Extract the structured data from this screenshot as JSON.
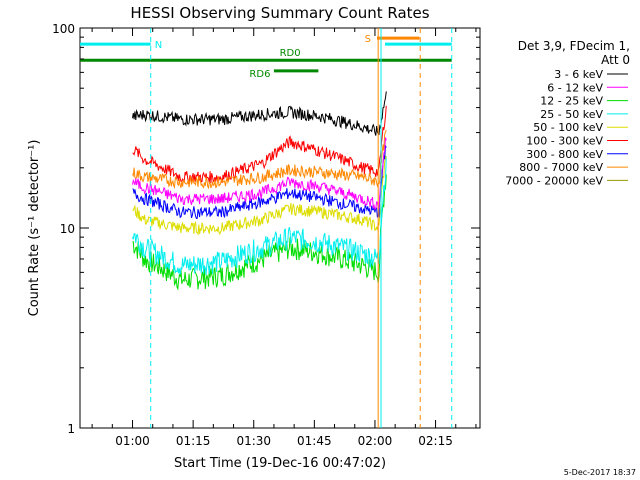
{
  "chart_data": {
    "type": "line",
    "title": "HESSI Observing Summary Count Rates",
    "xlabel": "Start Time (19-Dec-16 00:47:02)",
    "ylabel": "Count Rate (s⁻¹ detector⁻¹)",
    "y_scale": "log",
    "ylim": [
      1,
      100
    ],
    "xlim_minutes": [
      0,
      99
    ],
    "x_ticks": [
      {
        "label": "01:00",
        "minute": 13
      },
      {
        "label": "01:15",
        "minute": 28
      },
      {
        "label": "01:30",
        "minute": 43
      },
      {
        "label": "01:45",
        "minute": 58
      },
      {
        "label": "02:00",
        "minute": 73
      },
      {
        "label": "02:15",
        "minute": 88
      }
    ],
    "y_ticks": [
      {
        "label": "1",
        "value": 1
      },
      {
        "label": "10",
        "value": 10
      },
      {
        "label": "100",
        "value": 100
      }
    ],
    "legend_header": [
      "Det 3,9, FDecim 1,",
      "Att 0"
    ],
    "legend_position": "right",
    "series": [
      {
        "name": "3 - 6 keV",
        "color": "#000000",
        "x": [
          13,
          16,
          25,
          35,
          45,
          52,
          60,
          70,
          74,
          76
        ],
        "y": [
          36,
          37,
          35,
          35,
          37,
          38,
          36,
          32,
          30,
          48
        ]
      },
      {
        "name": "6 - 12 keV",
        "color": "#ff00ff",
        "x": [
          13,
          16,
          25,
          35,
          45,
          52,
          60,
          70,
          74,
          76
        ],
        "y": [
          17,
          16,
          14,
          14,
          15,
          17,
          16,
          14,
          13,
          30
        ]
      },
      {
        "name": "12 - 25 keV",
        "color": "#00dd00",
        "x": [
          13,
          16,
          25,
          35,
          45,
          52,
          60,
          70,
          74,
          76
        ],
        "y": [
          8.5,
          7,
          5.5,
          5.8,
          7,
          8,
          7.5,
          6.5,
          6,
          20
        ]
      },
      {
        "name": "25 - 50 keV",
        "color": "#00eeee",
        "x": [
          13,
          16,
          25,
          35,
          45,
          52,
          60,
          70,
          74,
          76
        ],
        "y": [
          9.5,
          8,
          6.5,
          6.8,
          8,
          9,
          8.5,
          7.5,
          7,
          22
        ]
      },
      {
        "name": "50 - 100 keV",
        "color": "#dddd00",
        "x": [
          13,
          16,
          25,
          35,
          45,
          52,
          60,
          70,
          74,
          76
        ],
        "y": [
          12.5,
          11,
          10,
          10,
          11,
          12.5,
          12,
          11,
          10,
          25
        ]
      },
      {
        "name": "100 - 300 keV",
        "color": "#ff0000",
        "x": [
          13,
          16,
          25,
          35,
          45,
          52,
          60,
          70,
          74,
          76
        ],
        "y": [
          25,
          22,
          18,
          18,
          21,
          27,
          24,
          20,
          19,
          42
        ]
      },
      {
        "name": "300 - 800 keV",
        "color": "#0000ff",
        "x": [
          13,
          16,
          25,
          35,
          45,
          52,
          60,
          70,
          74,
          76
        ],
        "y": [
          15,
          14,
          12,
          12,
          13.5,
          15,
          14,
          12.5,
          12,
          28
        ]
      },
      {
        "name": "800 - 7000 keV",
        "color": "#ff8800",
        "x": [
          13,
          16,
          25,
          35,
          45,
          52,
          60,
          70,
          74,
          76
        ],
        "y": [
          19,
          18,
          17,
          17,
          18,
          19.5,
          19,
          18,
          17,
          32
        ]
      },
      {
        "name": "7000 - 20000 keV",
        "color": "#999900",
        "x": [],
        "y": []
      }
    ],
    "flag_bars": [
      {
        "label": "N",
        "color": "#00eeee",
        "segments": [
          [
            0,
            17.5
          ],
          [
            75.5,
            92
          ]
        ],
        "y": 83
      },
      {
        "label": "S",
        "color": "#ff8800",
        "segments": [
          [
            73.5,
            84
          ]
        ],
        "y": 89
      },
      {
        "label": "RD0",
        "color": "#008800",
        "segments": [
          [
            0,
            92
          ]
        ],
        "y": 69
      },
      {
        "label": "RD6",
        "color": "#008800",
        "segments": [
          [
            48,
            59
          ]
        ],
        "y": 61
      }
    ],
    "vertical_lines": [
      {
        "minute": 17.5,
        "color": "#00eeee",
        "style": "dashed"
      },
      {
        "minute": 73.8,
        "color": "#ff8800",
        "style": "solid"
      },
      {
        "minute": 74.5,
        "color": "#00eeee",
        "style": "solid"
      },
      {
        "minute": 84.2,
        "color": "#ff8800",
        "style": "dashed"
      },
      {
        "minute": 92,
        "color": "#00eeee",
        "style": "dashed"
      }
    ],
    "footer_date": "5-Dec-2017 18:37"
  }
}
